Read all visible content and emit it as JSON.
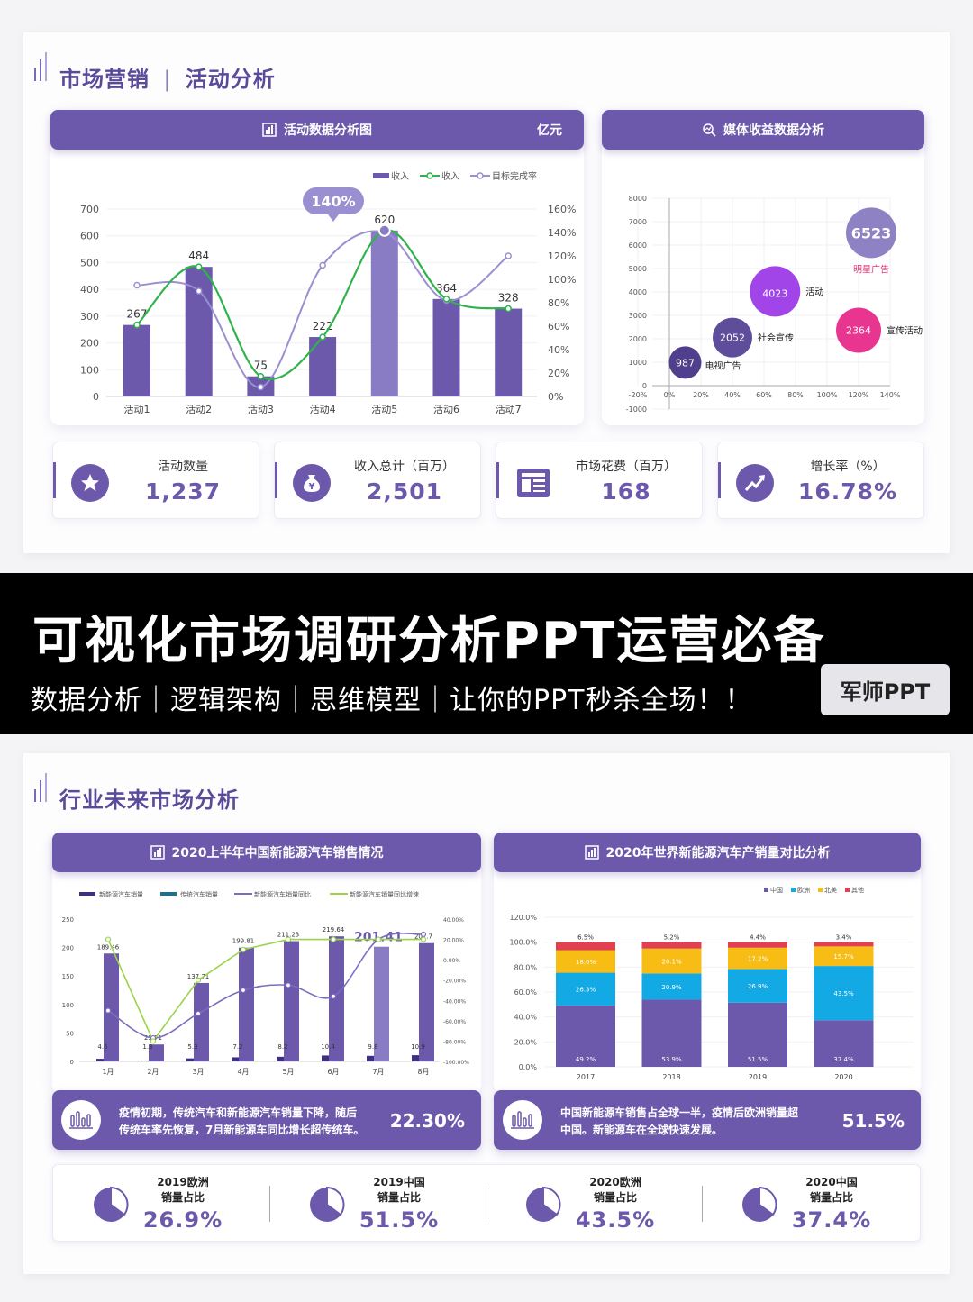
{
  "slide1": {
    "title_left": "市场营销",
    "title_sep": "|",
    "title_right": "活动分析",
    "left_panel": {
      "title": "活动数据分析图",
      "unit": "亿元"
    },
    "right_panel": {
      "title": "媒体收益数据分析"
    },
    "kpis": [
      {
        "label": "活动数量",
        "value": "1,237",
        "icon": "star-icon"
      },
      {
        "label": "收入总计（百万）",
        "value": "2,501",
        "icon": "money-bag-icon"
      },
      {
        "label": "市场花费（百万）",
        "value": "168",
        "icon": "document-icon"
      },
      {
        "label": "增长率（%）",
        "value": "16.78%",
        "icon": "trend-up-icon"
      }
    ]
  },
  "banner": {
    "title": "可视化市场调研分析PPT运营必备",
    "subtitle": "数据分析｜逻辑架构｜思维模型｜让你的PPT秒杀全场！！",
    "brand_button": "军师PPT"
  },
  "slide2": {
    "title": "行业未来市场分析",
    "left_panel": {
      "title": "2020上半年中国新能源汽车销售情况"
    },
    "right_panel": {
      "title": "2020年世界新能源汽车产销量对比分析"
    },
    "left_note": {
      "text_line1": "疫情初期，传统汽车和新能源汽车销量下降，随后",
      "text_line2": "传统车率先恢复，7月新能源车同比增长超传统车。",
      "value": "22.30%"
    },
    "right_note": {
      "text_line1": "中国新能源车销售占全球一半，疫情后欧洲销量超",
      "text_line2": "中国。新能源车在全球快速发展。",
      "value": "51.5%"
    },
    "stats": [
      {
        "label_line1": "2019欧洲",
        "label_line2": "销量占比",
        "value": "26.9%"
      },
      {
        "label_line1": "2019中国",
        "label_line2": "销量占比",
        "value": "51.5%"
      },
      {
        "label_line1": "2020欧洲",
        "label_line2": "销量占比",
        "value": "43.5%"
      },
      {
        "label_line1": "2020中国",
        "label_line2": "销量占比",
        "value": "37.4%"
      }
    ]
  },
  "colors": {
    "purple": "#6c59ab",
    "green": "#2fb34a",
    "lavender": "#9a8fd0",
    "yellow": "#f7bd15",
    "cyan": "#12a9e5",
    "red": "#e04050"
  },
  "chart_data": [
    {
      "type": "bar",
      "categories": [
        "活动1",
        "活动2",
        "活动3",
        "活动4",
        "活动5",
        "活动6",
        "活动7"
      ],
      "series": [
        {
          "name": "收入",
          "type": "bar",
          "values": [
            267,
            484,
            75,
            222,
            620,
            364,
            328
          ]
        },
        {
          "name": "收入",
          "type": "line",
          "values": [
            267,
            484,
            75,
            222,
            620,
            364,
            328
          ]
        },
        {
          "name": "目标完成率",
          "type": "line",
          "axis": "right",
          "values": [
            0.95,
            0.9,
            0.08,
            1.12,
            1.4,
            0.82,
            1.2
          ]
        }
      ],
      "ylim": [
        0,
        700
      ],
      "y_ticks": [
        "0",
        "100",
        "200",
        "300",
        "400",
        "500",
        "600",
        "700"
      ],
      "y2_ticks": [
        "0%",
        "20%",
        "40%",
        "60%",
        "80%",
        "100%",
        "120%",
        "140%",
        "160%"
      ],
      "callout": "140%",
      "title": "活动数据分析图"
    },
    {
      "type": "scatter",
      "points": [
        {
          "label": "明星广告",
          "value": 6523,
          "x": 1.28,
          "y": 6523
        },
        {
          "label": "活动",
          "value": 4023,
          "x": 0.67,
          "y": 4023
        },
        {
          "label": "宣传活动",
          "value": 2364,
          "x": 1.2,
          "y": 2364
        },
        {
          "label": "社会宣传",
          "value": 2052,
          "x": 0.4,
          "y": 2052
        },
        {
          "label": "电视广告",
          "value": 987,
          "x": 0.1,
          "y": 987
        }
      ],
      "x_ticks": [
        "-20%",
        "0%",
        "20%",
        "40%",
        "60%",
        "80%",
        "100%",
        "120%",
        "140%"
      ],
      "y_ticks": [
        "-1000",
        "0",
        "1000",
        "2000",
        "3000",
        "4000",
        "5000",
        "6000",
        "7000",
        "8000"
      ],
      "xlim": [
        -0.2,
        1.4
      ],
      "ylim": [
        -1000,
        8000
      ],
      "title": "媒体收益数据分析"
    },
    {
      "type": "bar",
      "categories": [
        "1月",
        "2月",
        "3月",
        "4月",
        "5月",
        "6月",
        "7月",
        "8月"
      ],
      "series": [
        {
          "name": "新能源汽车销量",
          "values": [
            4.6,
            1.3,
            5.3,
            7.2,
            8.2,
            10.4,
            9.8,
            10.9
          ]
        },
        {
          "name": "传统汽车销量",
          "values": [
            189.46,
            29.71,
            137.71,
            199.81,
            211.23,
            219.64,
            201.41,
            207.7
          ]
        },
        {
          "name": "新能源汽车销量同比",
          "axis": "right",
          "values": [
            -0.5,
            -0.77,
            -0.53,
            -0.3,
            -0.25,
            -0.36,
            0.2,
            0.25
          ]
        },
        {
          "name": "新能源汽车销量同比增速",
          "axis": "right",
          "values": [
            0.2,
            -0.8,
            -0.2,
            0.1,
            0.2,
            0.2,
            0.2,
            0.2
          ]
        }
      ],
      "bar_labels": [
        "189.46",
        "29.71",
        "137.71",
        "199.81",
        "211.23",
        "219.64",
        "201.41",
        "207.7"
      ],
      "small_labels": [
        "4.6",
        "1.3",
        "5.3",
        "7.2",
        "8.2",
        "10.4",
        "9.8",
        "10.9"
      ],
      "ylim": [
        0,
        250
      ],
      "y_ticks": [
        "0",
        "50",
        "100",
        "150",
        "200",
        "250"
      ],
      "y2_ticks": [
        "-100.00%",
        "-80.00%",
        "-60.00%",
        "-40.00%",
        "-20.00%",
        "0.00%",
        "20.00%",
        "40.00%"
      ],
      "title": "2020上半年中国新能源汽车销售情况"
    },
    {
      "type": "bar",
      "stacked": true,
      "categories": [
        "2017",
        "2018",
        "2019",
        "2020"
      ],
      "series": [
        {
          "name": "中国",
          "values": [
            49.2,
            53.9,
            51.5,
            37.4
          ]
        },
        {
          "name": "欧洲",
          "values": [
            26.3,
            20.9,
            26.9,
            43.5
          ]
        },
        {
          "name": "北美",
          "values": [
            18.0,
            20.1,
            17.2,
            15.7
          ]
        },
        {
          "name": "其他",
          "values": [
            6.5,
            5.2,
            4.4,
            3.4
          ]
        }
      ],
      "ylim": [
        0,
        120
      ],
      "y_ticks": [
        "0.0%",
        "20.0%",
        "40.0%",
        "60.0%",
        "80.0%",
        "100.0%",
        "120.0%"
      ],
      "title": "2020年世界新能源汽车产销量对比分析"
    }
  ]
}
